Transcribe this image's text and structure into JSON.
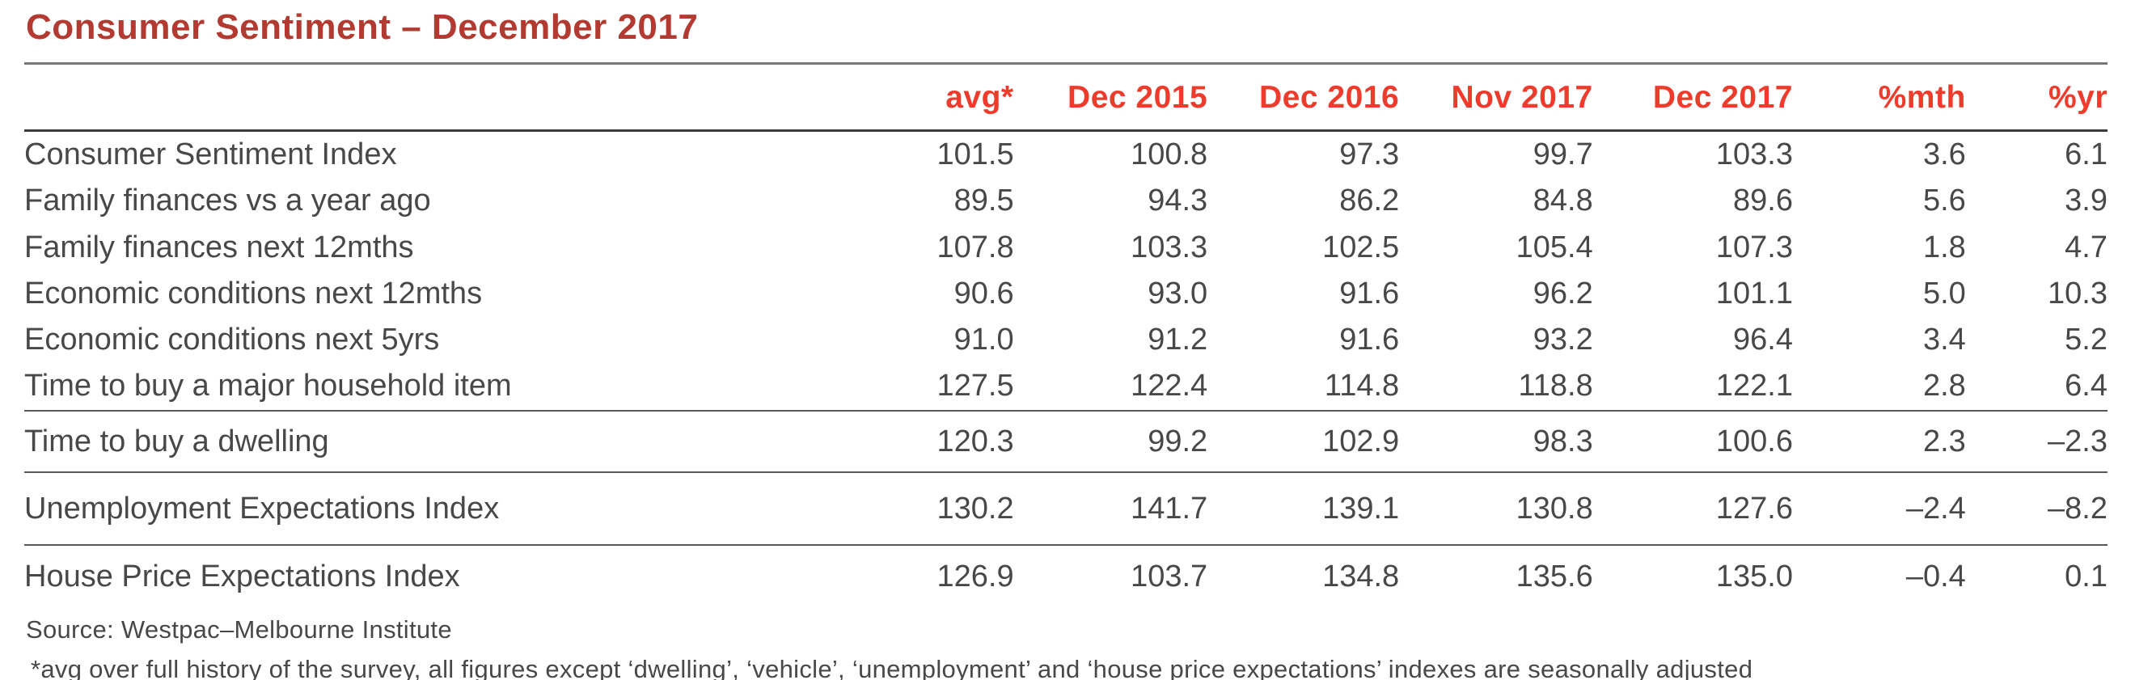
{
  "chart_data": {
    "type": "table",
    "title": "Consumer Sentiment – December 2017",
    "columns": [
      "avg*",
      "Dec 2015",
      "Dec 2016",
      "Nov 2017",
      "Dec 2017",
      "%mth",
      "%yr"
    ],
    "sections": [
      {
        "name": "main-indexes",
        "rows": [
          {
            "label": "Consumer Sentiment Index",
            "values": [
              "101.5",
              "100.8",
              "97.3",
              "99.7",
              "103.3",
              "3.6",
              "6.1"
            ]
          },
          {
            "label": "Family finances vs a year ago",
            "values": [
              "89.5",
              "94.3",
              "86.2",
              "84.8",
              "89.6",
              "5.6",
              "3.9"
            ]
          },
          {
            "label": "Family finances next 12mths",
            "values": [
              "107.8",
              "103.3",
              "102.5",
              "105.4",
              "107.3",
              "1.8",
              "4.7"
            ]
          },
          {
            "label": "Economic conditions next 12mths",
            "values": [
              "90.6",
              "93.0",
              "91.6",
              "96.2",
              "101.1",
              "5.0",
              "10.3"
            ]
          },
          {
            "label": "Economic conditions next 5yrs",
            "values": [
              "91.0",
              "91.2",
              "91.6",
              "93.2",
              "96.4",
              "3.4",
              "5.2"
            ]
          },
          {
            "label": "Time to buy a major household item",
            "values": [
              "127.5",
              "122.4",
              "114.8",
              "118.8",
              "122.1",
              "2.8",
              "6.4"
            ]
          }
        ]
      },
      {
        "name": "dwelling",
        "rows": [
          {
            "label": "Time to buy a dwelling",
            "values": [
              "120.3",
              "99.2",
              "102.9",
              "98.3",
              "100.6",
              "2.3",
              "–2.3"
            ]
          }
        ]
      },
      {
        "name": "unemployment",
        "rows": [
          {
            "label": "Unemployment Expectations Index",
            "values": [
              "130.2",
              "141.7",
              "139.1",
              "130.8",
              "127.6",
              "–2.4",
              "–8.2"
            ]
          }
        ]
      },
      {
        "name": "houseprice",
        "rows": [
          {
            "label": "House Price Expectations Index",
            "values": [
              "126.9",
              "103.7",
              "134.8",
              "135.6",
              "135.0",
              "–0.4",
              "0.1"
            ]
          }
        ]
      }
    ],
    "source": "Source: Westpac–Melbourne Institute",
    "footnote": "*avg over full history of the survey, all figures except ‘dwelling’, ‘vehicle’, ‘unemployment’ and ‘house price expectations’ indexes are seasonally adjusted"
  },
  "colors": {
    "title_red": "#b23a31",
    "header_red": "#ee3b2c",
    "body_text": "#48484b",
    "rule_light": "#77787b",
    "rule_dark": "#3b3b3d",
    "rule_section": "#58595b"
  }
}
